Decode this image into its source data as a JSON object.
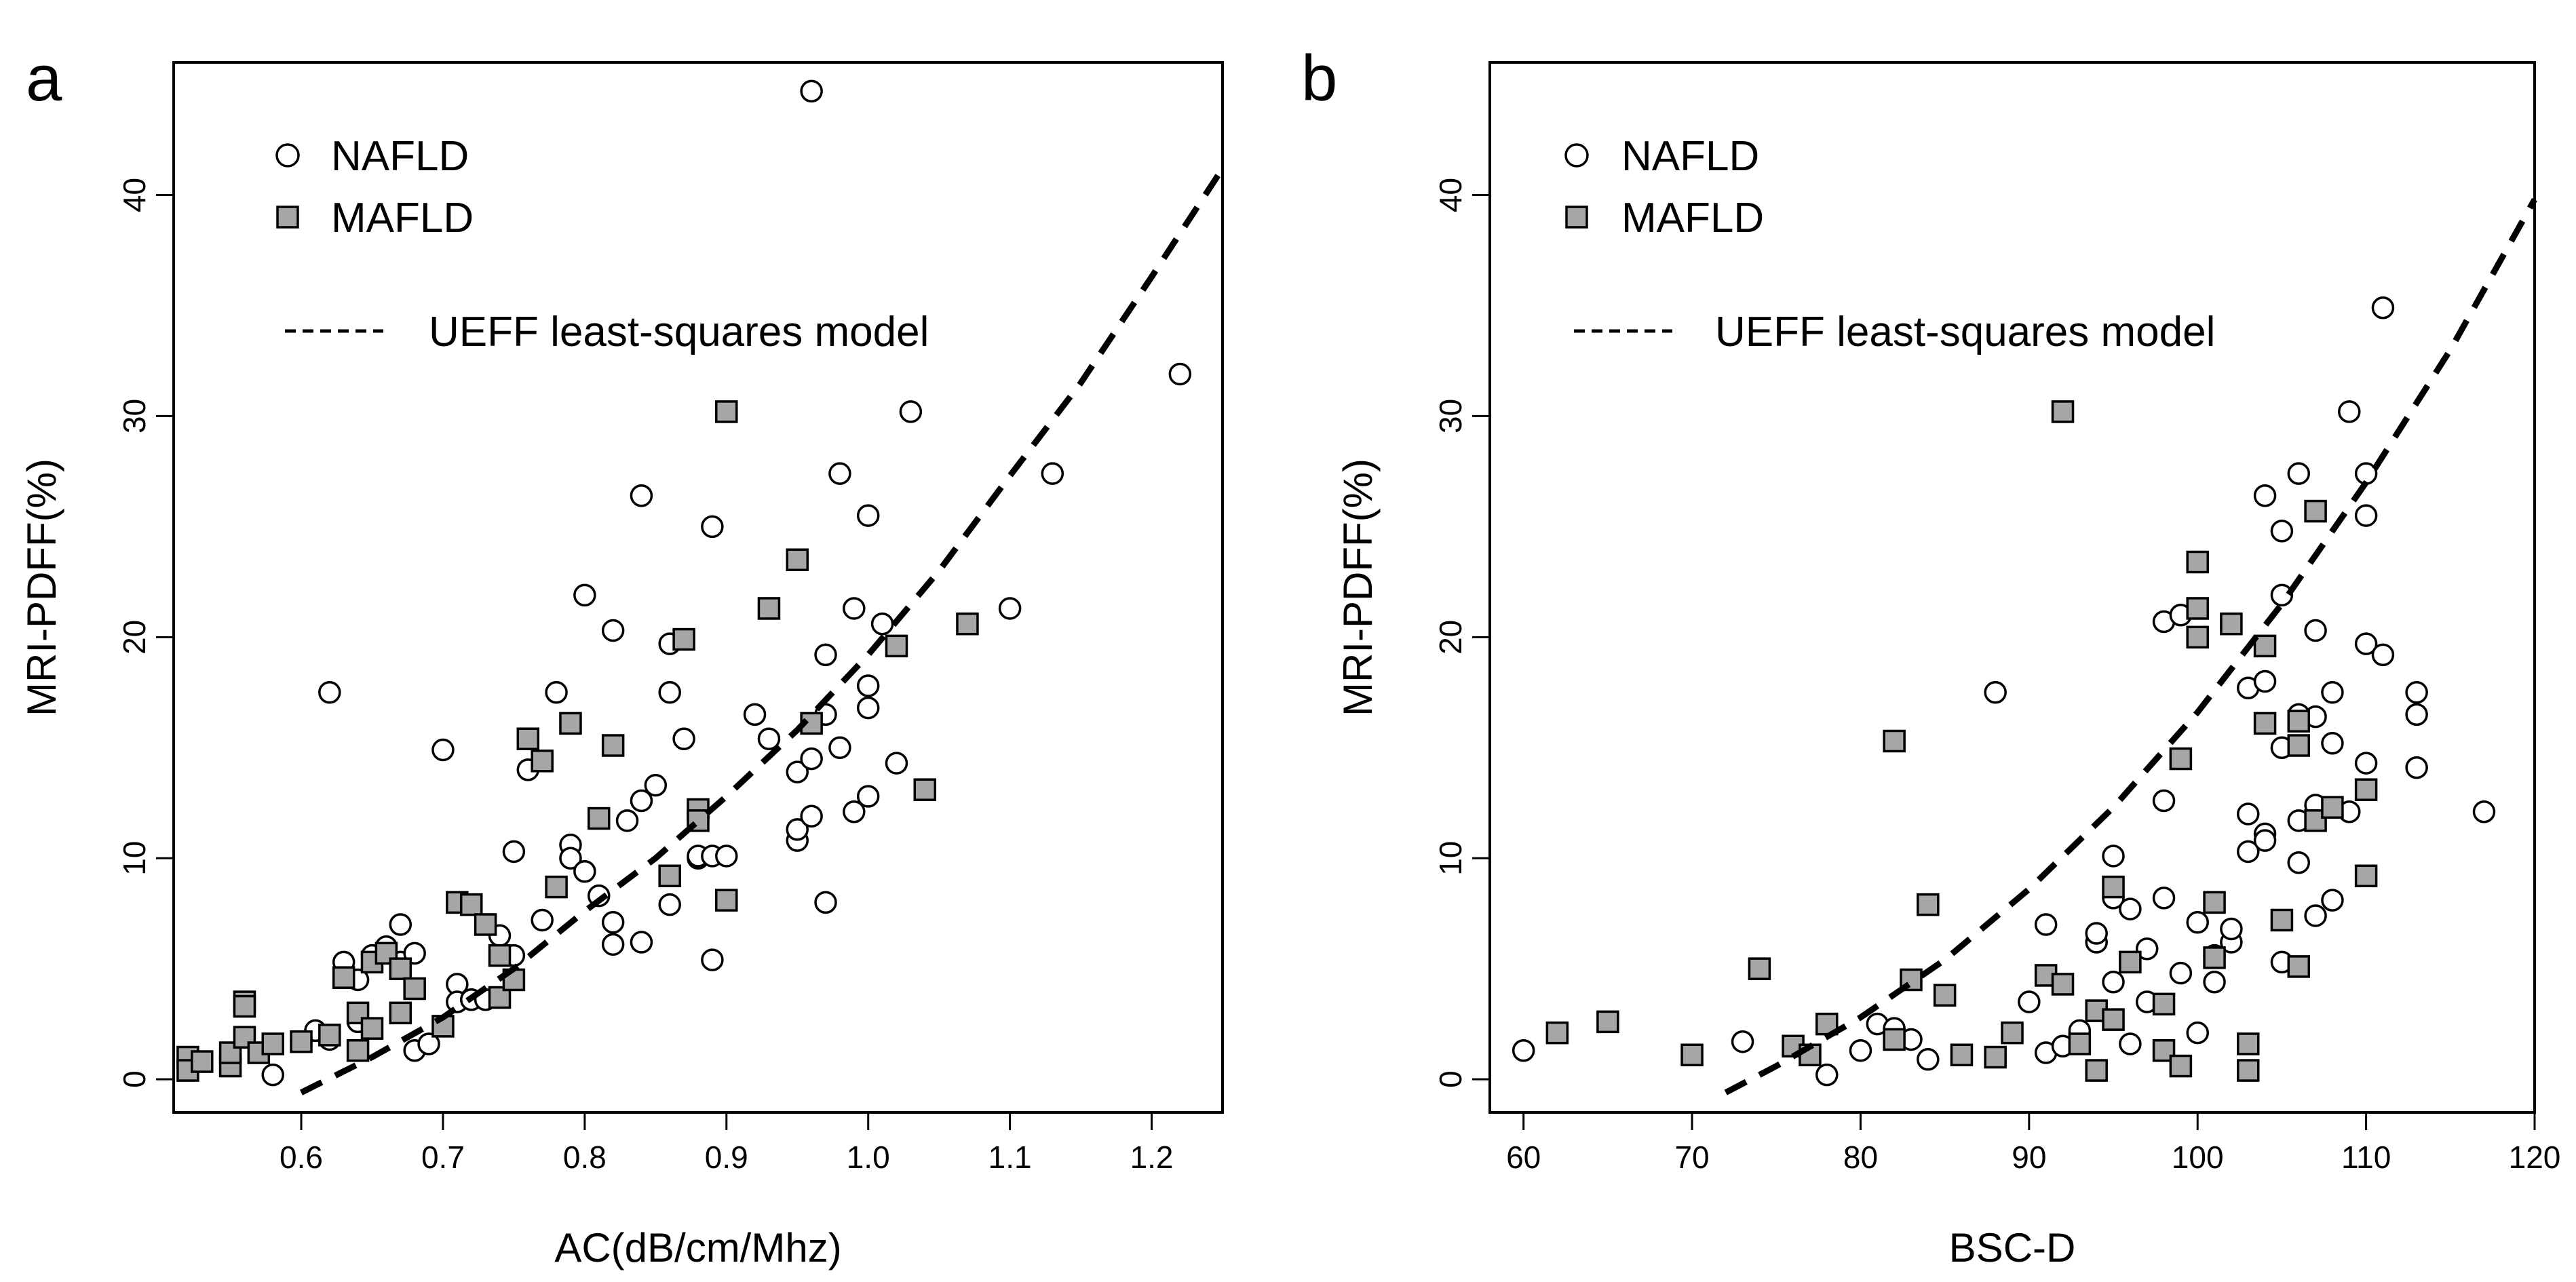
{
  "chart_data": [
    {
      "type": "scatter",
      "panel_label": "a",
      "xlabel": "AC(dB/cm/Mhz)",
      "ylabel": "MRI-PDFF(%)",
      "xlim": [
        0.51,
        1.25
      ],
      "ylim": [
        -1.5,
        46
      ],
      "x_ticks": [
        0.6,
        0.7,
        0.8,
        0.9,
        1.0,
        1.1,
        1.2
      ],
      "x_tick_labels": [
        "0.6",
        "0.7",
        "0.8",
        "0.9",
        "1.0",
        "1.1",
        "1.2"
      ],
      "y_ticks": [
        0,
        10,
        20,
        30,
        40
      ],
      "y_tick_labels": [
        "0",
        "10",
        "20",
        "30",
        "40"
      ],
      "legend": {
        "position": "top-left",
        "entries": [
          {
            "label": "NAFLD",
            "marker": "open-circle"
          },
          {
            "label": "MAFLD",
            "marker": "gray-square"
          },
          {
            "label": "UEFF least-squares model",
            "marker": "dashed-line"
          }
        ]
      },
      "series": [
        {
          "name": "NAFLD",
          "x": [
            0.96,
            0.62,
            0.58,
            0.6,
            0.61,
            0.62,
            0.63,
            0.64,
            0.64,
            0.65,
            0.66,
            0.67,
            0.67,
            0.68,
            0.68,
            0.69,
            0.7,
            0.71,
            0.71,
            0.72,
            0.73,
            0.74,
            0.75,
            0.75,
            0.76,
            0.77,
            0.78,
            0.79,
            0.79,
            0.8,
            0.8,
            0.81,
            0.82,
            0.82,
            0.82,
            0.83,
            0.84,
            0.84,
            0.84,
            0.85,
            0.86,
            0.86,
            0.86,
            0.87,
            0.88,
            0.88,
            0.88,
            0.89,
            0.89,
            0.89,
            0.9,
            0.92,
            0.93,
            0.95,
            0.95,
            0.95,
            0.96,
            0.96,
            0.97,
            0.97,
            0.97,
            0.98,
            0.98,
            0.99,
            0.99,
            1.0,
            1.0,
            1.0,
            1.0,
            1.01,
            1.02,
            1.03,
            1.1,
            1.13,
            1.22
          ],
          "y": [
            44.7,
            17.5,
            0.2,
            1.7,
            2.2,
            1.8,
            5.3,
            4.5,
            2.6,
            5.6,
            6.0,
            7.0,
            5.3,
            5.7,
            1.3,
            1.6,
            14.9,
            4.3,
            3.5,
            3.6,
            3.6,
            6.5,
            5.6,
            10.3,
            14.0,
            7.2,
            17.5,
            10.6,
            10.0,
            21.9,
            9.4,
            8.3,
            6.1,
            7.1,
            20.3,
            11.7,
            26.4,
            6.2,
            12.6,
            13.3,
            19.7,
            7.9,
            17.5,
            15.4,
            10.0,
            10.1,
            12.0,
            5.4,
            10.1,
            25.0,
            10.1,
            16.5,
            15.4,
            10.8,
            11.3,
            13.9,
            11.9,
            14.5,
            16.5,
            8.0,
            19.2,
            15.0,
            27.4,
            12.1,
            21.3,
            17.8,
            16.8,
            12.8,
            25.5,
            20.6,
            14.3,
            30.2,
            21.3,
            27.4,
            31.9
          ]
        },
        {
          "name": "MAFLD",
          "x": [
            0.52,
            0.52,
            0.53,
            0.55,
            0.55,
            0.56,
            0.56,
            0.56,
            0.57,
            0.58,
            0.6,
            0.62,
            0.63,
            0.64,
            0.64,
            0.65,
            0.65,
            0.66,
            0.67,
            0.67,
            0.68,
            0.7,
            0.71,
            0.72,
            0.73,
            0.74,
            0.74,
            0.75,
            0.76,
            0.77,
            0.78,
            0.79,
            0.81,
            0.82,
            0.86,
            0.87,
            0.88,
            0.88,
            0.9,
            0.9,
            0.93,
            0.95,
            0.96,
            1.02,
            1.04,
            1.07
          ],
          "y": [
            1.0,
            0.4,
            0.8,
            0.6,
            1.2,
            3.5,
            3.3,
            1.9,
            1.2,
            1.6,
            1.7,
            2.0,
            4.6,
            1.3,
            3.0,
            2.3,
            5.3,
            5.7,
            3.0,
            5.0,
            4.1,
            2.4,
            8.0,
            7.9,
            7.0,
            5.6,
            3.7,
            4.5,
            15.4,
            14.4,
            8.7,
            16.1,
            11.8,
            15.1,
            9.2,
            19.9,
            12.2,
            11.7,
            30.2,
            8.1,
            21.3,
            23.5,
            16.1,
            19.6,
            13.1,
            20.6
          ]
        },
        {
          "name": "UEFF least-squares model",
          "kind": "curve",
          "x": [
            0.6,
            0.65,
            0.7,
            0.75,
            0.8,
            0.85,
            0.9,
            0.95,
            1.0,
            1.05,
            1.1,
            1.15,
            1.2,
            1.25
          ],
          "y": [
            -0.6,
            1.0,
            2.8,
            5.0,
            7.6,
            10.0,
            12.8,
            15.8,
            19.2,
            23.0,
            27.3,
            31.5,
            36.3,
            41.2
          ]
        }
      ]
    },
    {
      "type": "scatter",
      "panel_label": "b",
      "xlabel": "BSC-D",
      "ylabel": "MRI-PDFF(%)",
      "xlim": [
        58,
        120
      ],
      "ylim": [
        -1.5,
        46
      ],
      "x_ticks": [
        60,
        70,
        80,
        90,
        100,
        110,
        120
      ],
      "x_tick_labels": [
        "60",
        "70",
        "80",
        "90",
        "100",
        "110",
        "120"
      ],
      "y_ticks": [
        0,
        10,
        20,
        30,
        40
      ],
      "y_tick_labels": [
        "0",
        "10",
        "20",
        "30",
        "40"
      ],
      "legend": {
        "position": "top-left",
        "entries": [
          {
            "label": "NAFLD",
            "marker": "open-circle"
          },
          {
            "label": "MAFLD",
            "marker": "gray-square"
          },
          {
            "label": "UEFF least-squares model",
            "marker": "dashed-line"
          }
        ]
      },
      "series": [
        {
          "name": "NAFLD",
          "x": [
            60,
            73,
            78,
            80,
            81,
            82,
            83,
            84,
            88,
            90,
            91,
            91,
            92,
            93,
            94,
            94,
            95,
            95,
            95,
            96,
            96,
            97,
            97,
            98,
            98,
            98,
            99,
            99,
            100,
            100,
            101,
            101,
            102,
            102,
            103,
            103,
            103,
            104,
            104,
            104,
            104,
            105,
            105,
            105,
            105,
            106,
            106,
            106,
            106,
            107,
            107,
            107,
            107,
            108,
            108,
            108,
            109,
            109,
            110,
            110,
            110,
            110,
            111,
            111,
            113,
            113,
            113,
            117
          ],
          "y": [
            1.3,
            1.7,
            0.2,
            1.3,
            2.5,
            2.3,
            1.8,
            0.9,
            17.5,
            3.5,
            7.0,
            1.2,
            1.5,
            2.2,
            6.2,
            6.6,
            10.1,
            4.4,
            8.2,
            7.7,
            1.6,
            5.9,
            3.5,
            8.2,
            20.7,
            12.6,
            21.0,
            4.8,
            7.1,
            2.1,
            4.4,
            5.6,
            6.2,
            6.8,
            10.3,
            12.0,
            17.7,
            18.0,
            26.4,
            11.1,
            10.8,
            5.3,
            15.0,
            21.9,
            24.8,
            16.5,
            9.8,
            27.4,
            11.7,
            20.3,
            16.4,
            7.4,
            12.4,
            17.5,
            15.2,
            8.1,
            30.2,
            12.1,
            25.5,
            19.7,
            27.4,
            14.3,
            34.9,
            19.2,
            17.5,
            16.5,
            14.1,
            12.1
          ]
        },
        {
          "name": "MAFLD",
          "x": [
            62,
            65,
            70,
            74,
            76,
            77,
            78,
            82,
            82,
            83,
            84,
            85,
            86,
            88,
            89,
            91,
            92,
            92,
            93,
            94,
            94,
            95,
            95,
            96,
            98,
            98,
            99,
            99,
            100,
            100,
            100,
            101,
            101,
            102,
            103,
            103,
            104,
            104,
            105,
            106,
            106,
            106,
            107,
            107,
            108,
            110,
            110
          ],
          "y": [
            2.1,
            2.6,
            1.1,
            5.0,
            1.5,
            1.1,
            2.5,
            15.3,
            1.8,
            4.5,
            7.9,
            3.8,
            1.1,
            1.0,
            2.1,
            4.7,
            30.2,
            4.3,
            1.6,
            3.1,
            0.4,
            8.7,
            2.7,
            5.3,
            1.3,
            3.4,
            0.6,
            14.5,
            23.4,
            20.0,
            21.3,
            5.5,
            8.0,
            20.6,
            1.6,
            0.4,
            19.6,
            16.1,
            7.2,
            5.1,
            15.1,
            16.2,
            11.7,
            25.7,
            12.3,
            9.2,
            13.1
          ]
        },
        {
          "name": "UEFF least-squares model",
          "kind": "curve",
          "x": [
            72,
            75,
            80,
            85,
            90,
            95,
            100,
            105,
            110,
            115,
            120
          ],
          "y": [
            -0.6,
            0.6,
            2.8,
            5.4,
            8.6,
            12.3,
            16.6,
            21.5,
            27.0,
            33.0,
            39.8
          ]
        }
      ]
    }
  ]
}
